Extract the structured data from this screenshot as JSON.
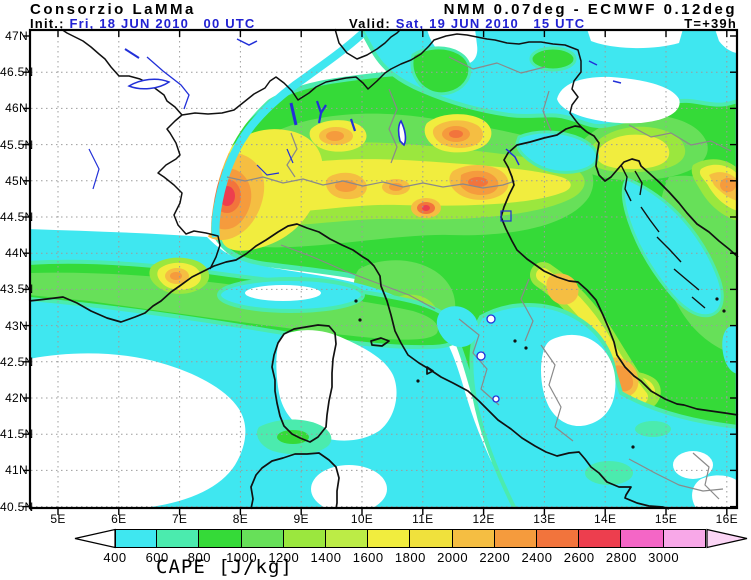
{
  "header": {
    "brand": "Consorzio LaMMa",
    "model_line": "NMM 0.07deg - ECMWF 0.12deg",
    "init_label": "Init.:",
    "init_value": " Fri, 18 JUN 2010   00 UTC",
    "valid_label": "Valid:",
    "valid_value": " Sat, 19 JUN 2010   15 UTC",
    "lead": "T=+39h"
  },
  "axes": {
    "lat_labels": [
      "47N",
      "46.5N",
      "46N",
      "45.5N",
      "45N",
      "44.5N",
      "44N",
      "43.5N",
      "43N",
      "42.5N",
      "42N",
      "41.5N",
      "41N",
      "40.5N"
    ],
    "lon_labels": [
      "5E",
      "6E",
      "7E",
      "8E",
      "9E",
      "10E",
      "11E",
      "12E",
      "13E",
      "14E",
      "15E",
      "16E"
    ]
  },
  "colorbar": {
    "title": "CAPE [J/kg]",
    "tick_values": [
      "400",
      "600",
      "800",
      "1000",
      "1200",
      "1400",
      "1600",
      "1800",
      "2000",
      "2200",
      "2400",
      "2600",
      "2800",
      "3000"
    ],
    "cell_colors": [
      "#3FE7F0",
      "#4BEBAE",
      "#35DA38",
      "#67E059",
      "#9BE73E",
      "#BCEC46",
      "#F1ED3E",
      "#F0E13C",
      "#F5BE42",
      "#F59B3D",
      "#F2743C",
      "#ED3E4E",
      "#F466C6",
      "#F8A8E8"
    ],
    "left_arrow_color": "#FFFFFF",
    "right_arrow_color": "#FBD5F5"
  },
  "colors": {
    "date_blue": "#2121D2",
    "grid_gray": "#9C9C9C",
    "region_border_gray": "#8A8A8A",
    "water_blue": "#2230D8"
  }
}
